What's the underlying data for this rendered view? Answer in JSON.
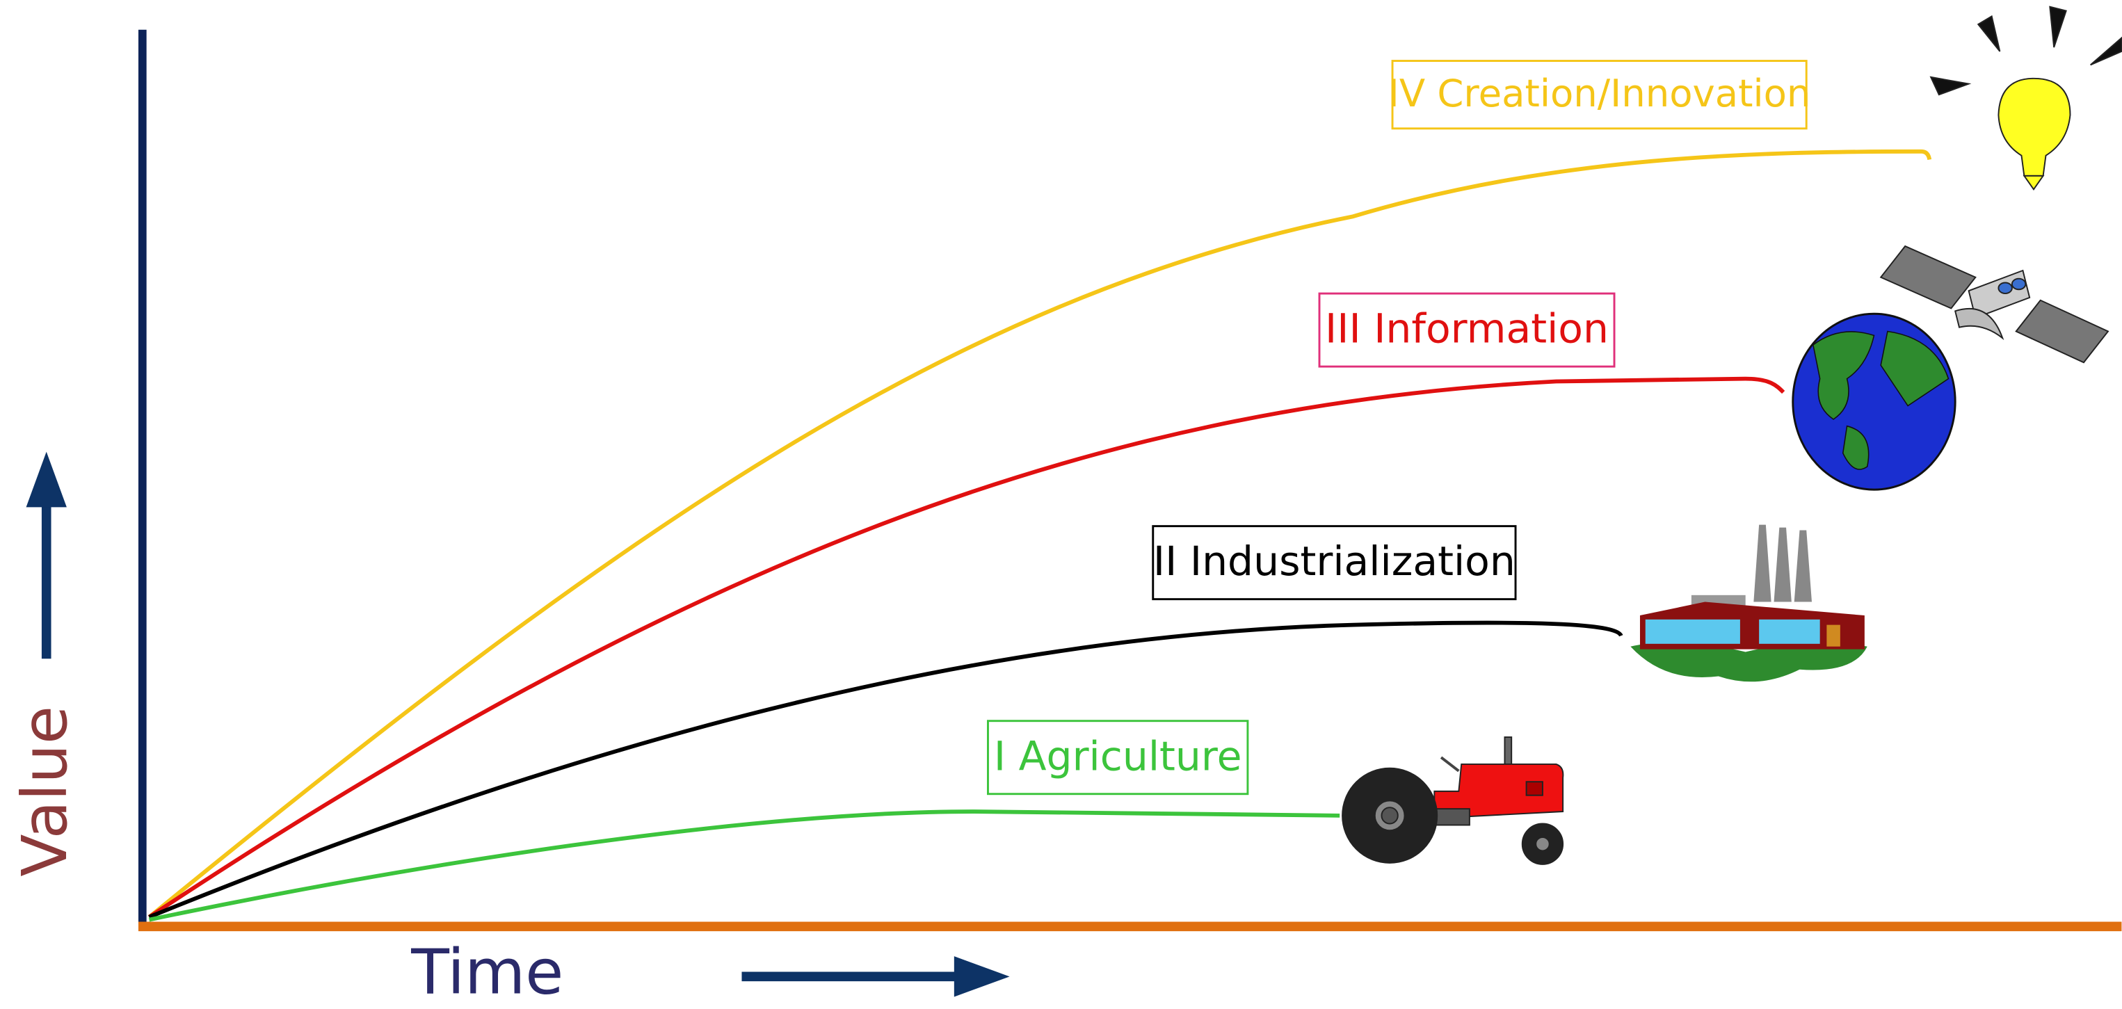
{
  "diagram": {
    "axes": {
      "y_label": "Value",
      "x_label": "Time"
    },
    "stages": [
      {
        "label": "IV Creation/Innovation"
      },
      {
        "label": "III Information"
      },
      {
        "label": "II Industrialization"
      },
      {
        "label": "I Agriculture"
      }
    ]
  }
}
